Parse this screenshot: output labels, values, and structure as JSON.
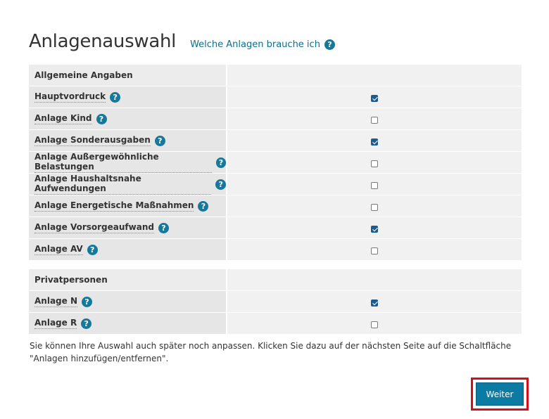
{
  "page": {
    "title": "Anlagenauswahl",
    "help_link": "Welche Anlagen brauche ich",
    "help_icon": "?"
  },
  "sections": [
    {
      "heading": "Allgemeine Angaben",
      "rows": [
        {
          "label": "Hauptvordruck",
          "checked": true
        },
        {
          "label": "Anlage Kind",
          "checked": false
        },
        {
          "label": "Anlage Sonderausgaben",
          "checked": true
        },
        {
          "label": "Anlage Außergewöhnliche Belastungen",
          "checked": false
        },
        {
          "label": "Anlage Haushaltsnahe Aufwendungen",
          "checked": false
        },
        {
          "label": "Anlage Energetische Maßnahmen",
          "checked": false
        },
        {
          "label": "Anlage Vorsorgeaufwand",
          "checked": true
        },
        {
          "label": "Anlage AV",
          "checked": false
        }
      ]
    },
    {
      "heading": "Privatpersonen",
      "rows": [
        {
          "label": "Anlage N",
          "checked": true
        },
        {
          "label": "Anlage R",
          "checked": false
        }
      ]
    }
  ],
  "hint_text": "Sie können Ihre Auswahl auch später noch anpassen. Klicken Sie dazu auf der nächsten Seite auf die Schaltfläche \"Anlagen hinzufügen/entfernen\".",
  "next_button": "Weiter",
  "colors": {
    "accent": "#0b7ba4",
    "help_icon": "#16789a",
    "highlight_frame": "#d1101d"
  }
}
